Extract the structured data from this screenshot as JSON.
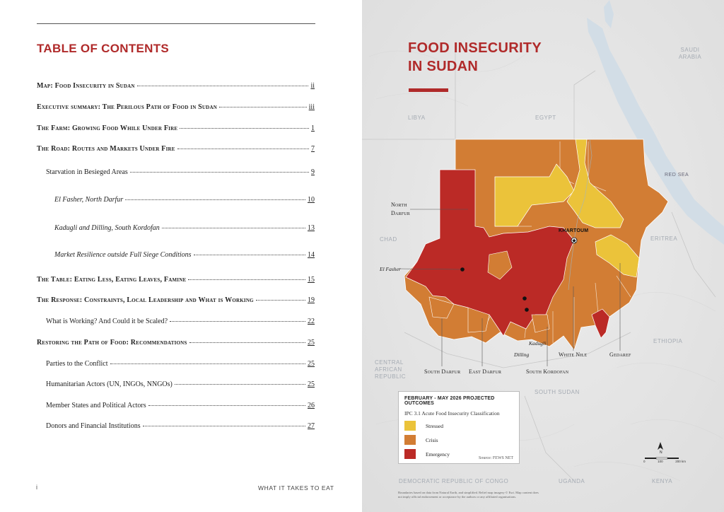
{
  "left_page": {
    "toc_title": "TABLE OF CONTENTS",
    "entries": [
      {
        "label": "Map: Food Insecurity in Sudan",
        "page": "ii"
      },
      {
        "label": "Executive summary: The Perilous Path of Food in Sudan",
        "page": "iii"
      },
      {
        "label": "The Farm: Growing Food While Under Fire",
        "page": "1"
      },
      {
        "label": "The Road: Routes and Markets Under Fire",
        "page": "7"
      },
      {
        "label": "Starvation in Besieged Areas",
        "page": "9"
      },
      {
        "label": "El Fasher, North Darfur",
        "page": "10"
      },
      {
        "label": "Kadugli and Dilling, South Kordofan",
        "page": "13"
      },
      {
        "label": "Market Resilience outside Full Siege Conditions",
        "page": "14"
      },
      {
        "label": "The Table: Eating Less, Eating Leaves, Famine",
        "page": "15"
      },
      {
        "label": "The Response: Constraints, Local Leadership and What is Working",
        "page": "19"
      },
      {
        "label": "What is Working? And Could it be Scaled?",
        "page": "22"
      },
      {
        "label": "Restoring the Path of Food: Recommendations",
        "page": "25"
      },
      {
        "label": "Parties to the Conflict",
        "page": "25"
      },
      {
        "label": "Humanitarian Actors (UN, INGOs, NNGOs)",
        "page": "25"
      },
      {
        "label": "Member States and Political Actors",
        "page": "26"
      },
      {
        "label": "Donors and Financial Institutions",
        "page": "27"
      }
    ],
    "footer_page": "i",
    "footer_title": "What it takes to eat"
  },
  "map": {
    "title_line1": "FOOD INSECURITY",
    "title_line2": "IN SUDAN",
    "countries": {
      "saudi_arabia_1": "Saudi",
      "saudi_arabia_2": "Arabia",
      "egypt": "Egypt",
      "libya": "Libya",
      "chad": "Chad",
      "eritrea": "Eritrea",
      "ethiopia": "Ethiopia",
      "car_1": "Central",
      "car_2": "African",
      "car_3": "Republic",
      "south_sudan": "South Sudan",
      "drc": "Democratic Republic of Congo",
      "uganda": "Uganda",
      "kenya": "Kenya",
      "red_sea": "Red Sea"
    },
    "regions": {
      "north_darfur_1": "North",
      "north_darfur_2": "Darfur",
      "south_darfur": "South Darfur",
      "east_darfur": "East Darfur",
      "south_kordofan": "South Kordofan",
      "white_nile": "White Nile",
      "gedaref": "Gedaref"
    },
    "cities": {
      "khartoum": "KHARTOUM",
      "el_fasher": "El Fasher",
      "dilling": "Dilling",
      "kadugli": "Kadugli"
    },
    "legend": {
      "title": "FEBRUARY - MAY 2026 PROJECTED OUTCOMES",
      "subtitle": "IPC 3.1 Acute Food Insecurity Classification",
      "items": [
        {
          "label": "Stressed",
          "color": "#ebc33a"
        },
        {
          "label": "Crisis",
          "color": "#d27d34"
        },
        {
          "label": "Emergency",
          "color": "#bb2a26"
        }
      ],
      "source": "Source: FEWS NET"
    },
    "north_arrow": "N",
    "scale": {
      "a": "0",
      "b": "100",
      "c": "200 km"
    },
    "disclaimer": "Boundaries based on data from Natural Earth, and simplified. Relief map imagery © Esri. Map content does not imply official endorsement or acceptance by the authors or any affiliated organisations."
  }
}
